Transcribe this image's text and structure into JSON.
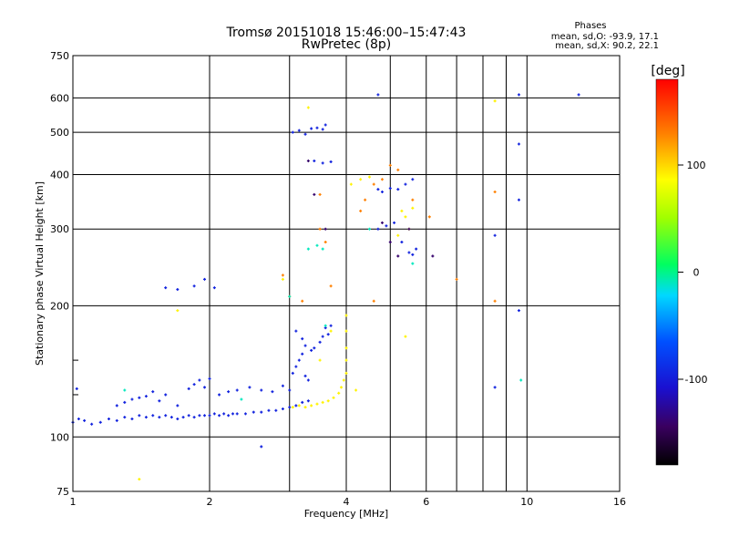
{
  "chart_data": {
    "type": "scatter",
    "title": "Tromsø 20151018 15:46:00–15:47:43",
    "subtitle": "RwPretec (8p)",
    "stats": {
      "heading": "Phases",
      "o_line": "mean, sd,O: -93.9, 17.1",
      "x_line": "mean, sd,X:  90.2, 22.1"
    },
    "xlabel": "Frequency [MHz]",
    "ylabel": "Stationary phase Virtual Height [km]",
    "x_scale": "log",
    "y_scale": "log",
    "xlim": [
      1,
      16
    ],
    "ylim": [
      75,
      750
    ],
    "x_ticks": [
      1,
      2,
      4,
      6,
      10,
      16
    ],
    "x_tick_labels": [
      "1",
      "2",
      "4",
      "6",
      "10",
      "16"
    ],
    "x_minor_ticks": [
      3,
      5,
      7,
      8,
      9
    ],
    "y_ticks": [
      75,
      100,
      200,
      300,
      400,
      500,
      600,
      750
    ],
    "y_tick_labels": [
      "75",
      "100",
      "200",
      "300",
      "400",
      "500",
      "600",
      "750"
    ],
    "y_minor_ticks": [
      125,
      150
    ],
    "grid": true,
    "colorbar": {
      "label": "[deg]",
      "range": [
        -180,
        180
      ],
      "ticks": [
        100,
        0,
        -100
      ],
      "tick_labels": [
        "100",
        "0",
        "-100"
      ]
    },
    "series": [
      {
        "phase": -95,
        "points": [
          [
            1.0,
            108
          ],
          [
            1.03,
            110
          ],
          [
            1.06,
            109
          ],
          [
            1.1,
            107
          ],
          [
            1.15,
            108
          ],
          [
            1.2,
            110
          ],
          [
            1.25,
            109
          ],
          [
            1.3,
            111
          ],
          [
            1.35,
            110
          ],
          [
            1.4,
            112
          ],
          [
            1.45,
            111
          ],
          [
            1.5,
            112
          ],
          [
            1.55,
            111
          ],
          [
            1.6,
            112
          ],
          [
            1.65,
            111
          ],
          [
            1.7,
            110
          ],
          [
            1.75,
            111
          ],
          [
            1.8,
            112
          ],
          [
            1.85,
            111
          ],
          [
            1.9,
            112
          ],
          [
            1.95,
            112
          ],
          [
            2.0,
            112
          ],
          [
            2.05,
            113
          ],
          [
            2.1,
            112
          ],
          [
            2.15,
            113
          ],
          [
            2.2,
            112
          ],
          [
            2.25,
            113
          ],
          [
            2.3,
            113
          ],
          [
            2.4,
            113
          ],
          [
            2.5,
            114
          ],
          [
            2.6,
            114
          ],
          [
            2.7,
            115
          ],
          [
            2.8,
            115
          ],
          [
            2.9,
            116
          ],
          [
            3.0,
            117
          ],
          [
            3.1,
            118
          ],
          [
            3.2,
            120
          ],
          [
            3.3,
            121
          ],
          [
            1.25,
            118
          ],
          [
            1.35,
            122
          ],
          [
            1.45,
            124
          ],
          [
            1.55,
            121
          ],
          [
            1.6,
            125
          ],
          [
            1.7,
            118
          ],
          [
            1.8,
            129
          ],
          [
            1.85,
            132
          ],
          [
            1.9,
            135
          ],
          [
            1.95,
            130
          ],
          [
            2.0,
            136
          ],
          [
            2.1,
            125
          ],
          [
            2.2,
            127
          ],
          [
            2.3,
            128
          ],
          [
            2.45,
            130
          ],
          [
            2.6,
            128
          ],
          [
            2.75,
            127
          ],
          [
            2.9,
            131
          ],
          [
            3.0,
            128
          ],
          [
            3.05,
            140
          ],
          [
            3.1,
            145
          ],
          [
            3.15,
            150
          ],
          [
            3.2,
            155
          ],
          [
            3.25,
            138
          ],
          [
            3.3,
            135
          ],
          [
            3.4,
            160
          ],
          [
            3.5,
            165
          ],
          [
            3.55,
            170
          ],
          [
            3.65,
            172
          ],
          [
            3.1,
            175
          ],
          [
            3.2,
            168
          ],
          [
            3.25,
            162
          ],
          [
            3.35,
            158
          ],
          [
            3.6,
            178
          ],
          [
            3.7,
            180
          ],
          [
            1.6,
            220
          ],
          [
            1.7,
            218
          ],
          [
            1.85,
            222
          ],
          [
            1.95,
            230
          ],
          [
            2.05,
            220
          ],
          [
            3.05,
            500
          ],
          [
            3.15,
            505
          ],
          [
            3.25,
            495
          ],
          [
            3.35,
            510
          ],
          [
            3.45,
            512
          ],
          [
            3.55,
            508
          ],
          [
            3.6,
            520
          ],
          [
            3.4,
            430
          ],
          [
            3.55,
            425
          ],
          [
            3.7,
            428
          ],
          [
            4.7,
            370
          ],
          [
            4.8,
            365
          ],
          [
            5.0,
            372
          ],
          [
            5.2,
            370
          ],
          [
            5.4,
            380
          ],
          [
            5.6,
            390
          ],
          [
            4.7,
            300
          ],
          [
            4.9,
            305
          ],
          [
            5.1,
            310
          ],
          [
            5.3,
            280
          ],
          [
            5.5,
            265
          ],
          [
            5.6,
            262
          ],
          [
            5.7,
            270
          ],
          [
            8.5,
            290
          ],
          [
            9.6,
            195
          ],
          [
            9.6,
            470
          ],
          [
            9.6,
            350
          ],
          [
            9.6,
            610
          ],
          [
            13.0,
            610
          ],
          [
            4.7,
            610
          ],
          [
            8.5,
            130
          ],
          [
            2.6,
            95
          ],
          [
            1.02,
            129
          ],
          [
            1.3,
            120
          ],
          [
            1.4,
            123
          ],
          [
            1.5,
            127
          ]
        ]
      },
      {
        "phase": 90,
        "points": [
          [
            3.05,
            117
          ],
          [
            3.15,
            118
          ],
          [
            3.25,
            117
          ],
          [
            3.35,
            118
          ],
          [
            3.45,
            119
          ],
          [
            3.55,
            120
          ],
          [
            3.65,
            121
          ],
          [
            3.75,
            123
          ],
          [
            3.85,
            126
          ],
          [
            3.9,
            130
          ],
          [
            3.95,
            135
          ],
          [
            4.0,
            140
          ],
          [
            4.0,
            150
          ],
          [
            4.0,
            160
          ],
          [
            4.0,
            175
          ],
          [
            4.0,
            190
          ],
          [
            4.1,
            380
          ],
          [
            4.3,
            390
          ],
          [
            4.5,
            395
          ],
          [
            5.3,
            330
          ],
          [
            5.4,
            320
          ],
          [
            5.5,
            300
          ],
          [
            5.6,
            335
          ],
          [
            5.2,
            290
          ],
          [
            3.5,
            150
          ],
          [
            3.7,
            175
          ],
          [
            4.2,
            128
          ],
          [
            5.4,
            170
          ],
          [
            1.7,
            195
          ],
          [
            2.9,
            230
          ],
          [
            3.3,
            570
          ],
          [
            8.5,
            590
          ],
          [
            1.4,
            80
          ]
        ]
      },
      {
        "phase": 130,
        "points": [
          [
            3.5,
            360
          ],
          [
            3.5,
            300
          ],
          [
            3.6,
            280
          ],
          [
            4.3,
            330
          ],
          [
            4.4,
            350
          ],
          [
            4.6,
            380
          ],
          [
            5.2,
            410
          ],
          [
            5.6,
            350
          ],
          [
            6.1,
            320
          ],
          [
            7.0,
            230
          ],
          [
            8.5,
            205
          ],
          [
            8.5,
            365
          ],
          [
            3.0,
            210
          ],
          [
            3.7,
            222
          ],
          [
            4.6,
            205
          ],
          [
            3.2,
            205
          ],
          [
            2.9,
            235
          ],
          [
            4.8,
            390
          ],
          [
            5.0,
            420
          ]
        ]
      },
      {
        "phase": -10,
        "points": [
          [
            3.3,
            270
          ],
          [
            3.45,
            275
          ],
          [
            3.55,
            270
          ],
          [
            2.35,
            122
          ],
          [
            1.3,
            128
          ],
          [
            3.6,
            180
          ],
          [
            4.5,
            300
          ],
          [
            3.0,
            210
          ],
          [
            9.7,
            135
          ],
          [
            5.6,
            250
          ]
        ]
      },
      {
        "phase": -140,
        "points": [
          [
            3.4,
            360
          ],
          [
            3.6,
            300
          ],
          [
            4.8,
            310
          ],
          [
            5.0,
            280
          ],
          [
            5.2,
            260
          ],
          [
            5.5,
            300
          ],
          [
            6.2,
            260
          ],
          [
            3.3,
            430
          ]
        ]
      }
    ]
  }
}
